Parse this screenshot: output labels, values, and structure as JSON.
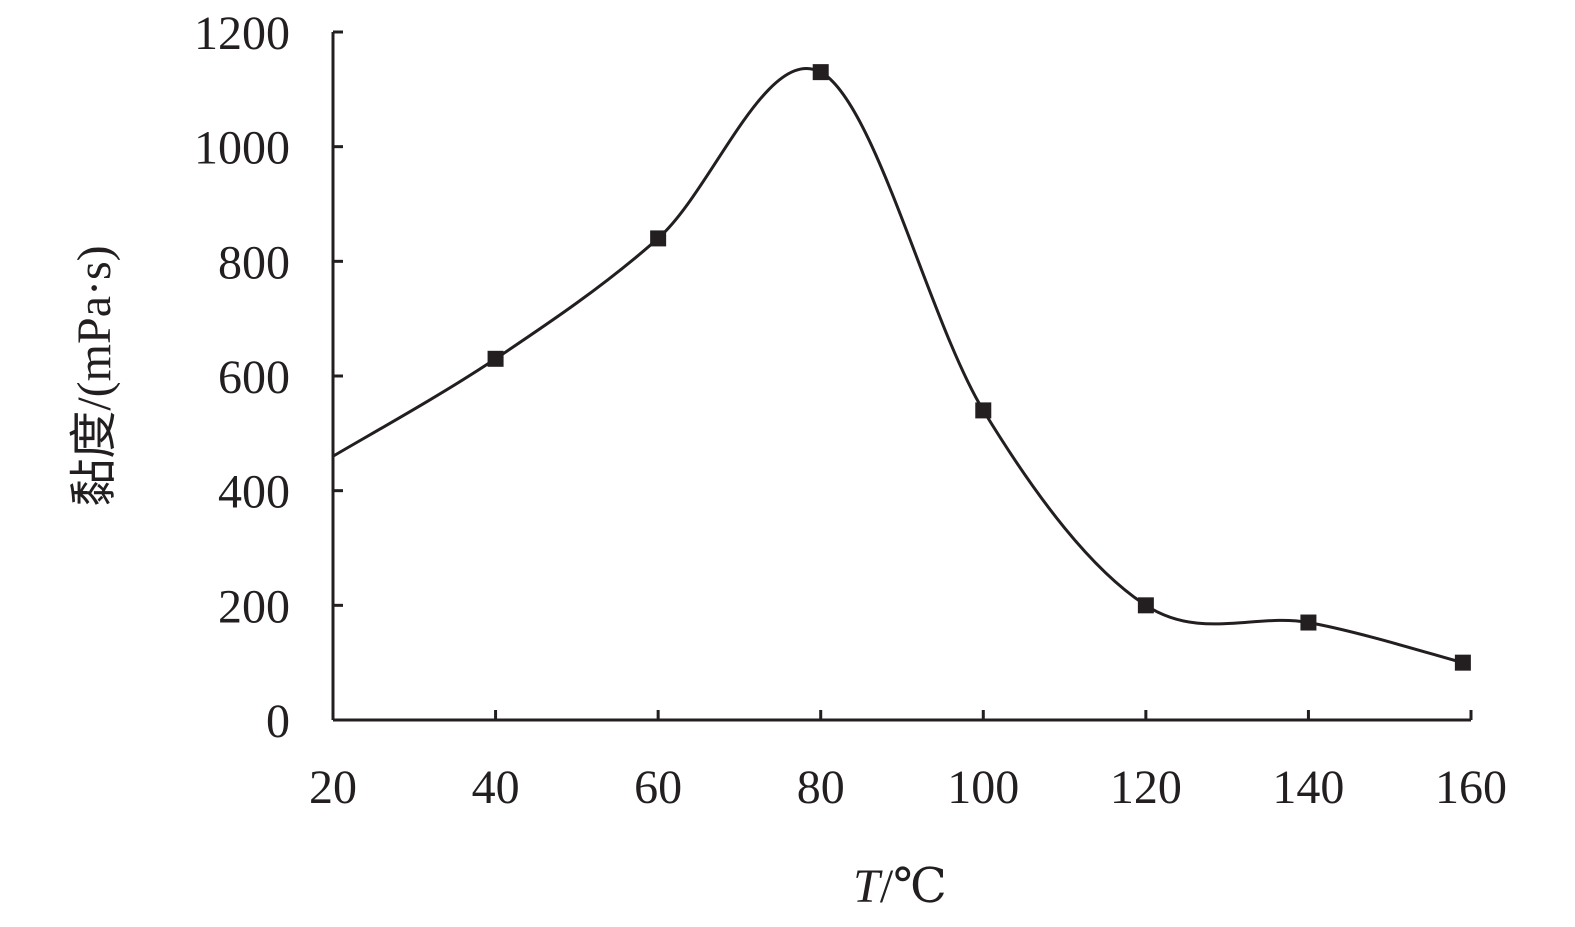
{
  "chart_data": {
    "type": "line",
    "xlabel": "T/℃",
    "xlabel_italic_part": "T",
    "xlabel_rest": "/℃",
    "ylabel": "黏度/(mPa·s)",
    "xlim": [
      20,
      160
    ],
    "ylim": [
      0,
      1200
    ],
    "xticks": [
      "20",
      "40",
      "60",
      "80",
      "100",
      "120",
      "140",
      "160"
    ],
    "yticks": [
      "0",
      "200",
      "400",
      "600",
      "800",
      "1000",
      "1200"
    ],
    "grid": false,
    "legend": "none",
    "smooth": true,
    "series": [
      {
        "color": "#231f20",
        "marker": "square",
        "x": [
          20,
          40,
          60,
          80,
          100,
          120,
          140,
          159
        ],
        "y": [
          460,
          630,
          840,
          1130,
          540,
          200,
          170,
          100
        ]
      }
    ]
  }
}
